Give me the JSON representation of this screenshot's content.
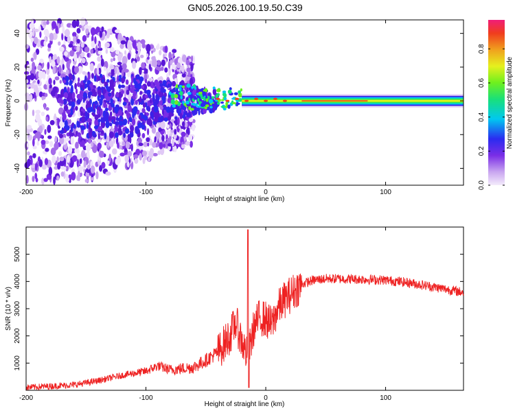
{
  "title": "GN05.2026.100.19.50.C39",
  "colors": {
    "snr_line": "#ee2222",
    "background": "#ffffff"
  },
  "chart_data": [
    {
      "type": "heatmap",
      "name": "spectrogram",
      "xlabel": "Height of straight line (km)",
      "ylabel": "Frequency (Hz)",
      "xlim": [
        -200,
        165
      ],
      "ylim": [
        -50,
        48
      ],
      "xticks": [
        -200,
        -100,
        0,
        100
      ],
      "yticks": [
        -40,
        -20,
        0,
        20,
        40
      ],
      "colorbar": {
        "label": "Normalized spectral amplitude",
        "range": [
          0,
          0.97
        ],
        "ticks": [
          "0.0",
          "0.2",
          "0.4",
          "0.6",
          "0.8"
        ],
        "tick_values": [
          0.0,
          0.2,
          0.4,
          0.6,
          0.8
        ]
      },
      "description_values": {
        "noise_region_x": [
          -200,
          -60
        ],
        "transition_region_x": [
          -60,
          -20
        ],
        "carrier_region_x": [
          -20,
          165
        ],
        "carrier_frequency_hz": 0,
        "carrier_band_halfwidth_hz": 3
      }
    },
    {
      "type": "line",
      "name": "snr",
      "xlabel": "Height of straight line (km)",
      "ylabel": "SNR (10 * v/v)",
      "xlim": [
        -200,
        165
      ],
      "ylim": [
        0,
        6000
      ],
      "xticks": [
        -200,
        -100,
        0,
        100
      ],
      "yticks": [
        1000,
        2000,
        3000,
        4000,
        5000
      ],
      "series": [
        {
          "name": "SNR",
          "x": [
            -200,
            -180,
            -160,
            -140,
            -120,
            -100,
            -90,
            -80,
            -60,
            -50,
            -40,
            -30,
            -25,
            -20,
            -15,
            -10,
            -5,
            0,
            5,
            10,
            15,
            20,
            25,
            30,
            40,
            50,
            60,
            80,
            100,
            120,
            140,
            165
          ],
          "y": [
            100,
            150,
            200,
            350,
            550,
            700,
            900,
            750,
            850,
            1100,
            1400,
            2000,
            2500,
            1800,
            1200,
            2300,
            2700,
            2600,
            2400,
            3000,
            3300,
            3500,
            3700,
            3900,
            4050,
            4100,
            4100,
            4080,
            4050,
            3950,
            3800,
            3600
          ]
        }
      ]
    }
  ]
}
